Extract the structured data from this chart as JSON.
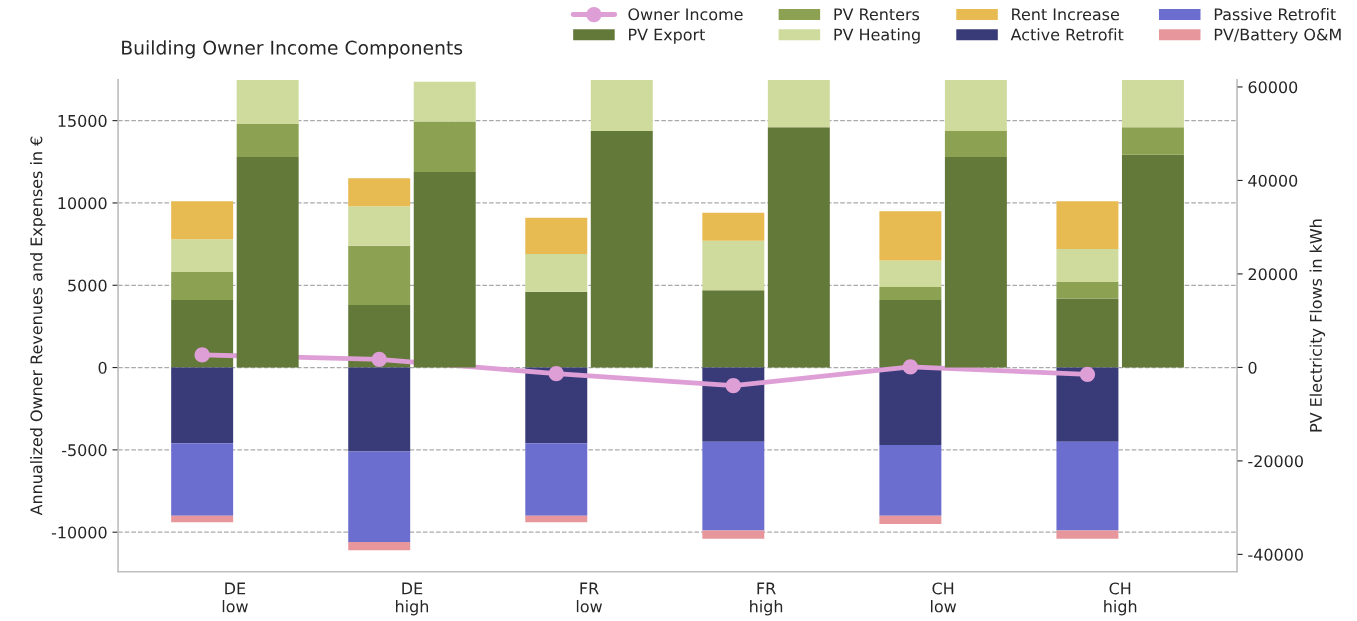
{
  "chart_data": {
    "type": "bar",
    "title": "Building Owner Income Components",
    "ylabel": "Annualized Owner Revenues and Expenses in €",
    "y2label": "PV Electricity Flows in kWh",
    "categories": [
      "DE\nlow",
      "DE\nhigh",
      "FR\nlow",
      "FR\nhigh",
      "CH\nlow",
      "CH\nhigh"
    ],
    "stacked": true,
    "grid": "y",
    "legend": "top right",
    "ylim": [
      -12400,
      17500
    ],
    "yticks": [
      -10000,
      -5000,
      0,
      5000,
      10000,
      15000
    ],
    "y2lim": [
      -43700,
      61600
    ],
    "y2ticks": [
      -40000,
      -20000,
      0,
      20000,
      40000,
      60000
    ],
    "series": [
      {
        "name": "Owner Income",
        "type": "line",
        "marker": "circle",
        "color": "#de9ed6",
        "values": [
          770,
          500,
          -370,
          -1100,
          40,
          -410
        ]
      },
      {
        "name": "PV Export",
        "color": "#637939",
        "values": [
          4100,
          3800,
          4600,
          4700,
          4100,
          4200
        ]
      },
      {
        "name": "PV Renters",
        "color": "#8ca252",
        "values": [
          1700,
          3600,
          0,
          0,
          800,
          1000
        ]
      },
      {
        "name": "PV Heating",
        "color": "#cedb9c",
        "values": [
          2000,
          2400,
          2300,
          3000,
          1600,
          2000
        ]
      },
      {
        "name": "Rent Increase",
        "color": "#e7ba52",
        "values": [
          2300,
          1700,
          2200,
          1700,
          3000,
          2900
        ]
      },
      {
        "name": "Active Retrofit",
        "color": "#393b79",
        "values": [
          -4600,
          -5100,
          -4600,
          -4500,
          -4700,
          -4500
        ]
      },
      {
        "name": "Passive Retrofit",
        "color": "#6b6ecf",
        "values": [
          -4400,
          -5500,
          -4400,
          -5400,
          -4300,
          -5400
        ]
      },
      {
        "name": "PV/Battery O&M",
        "color": "#e7969c",
        "values": [
          -400,
          -500,
          -400,
          -500,
          -500,
          -500
        ]
      },
      {
        "axis": "y2",
        "color": "#637939",
        "values": [
          45000,
          41800,
          50600,
          51400,
          45000,
          45500
        ]
      },
      {
        "axis": "y2",
        "color": "#8ca252",
        "values": [
          7100,
          10800,
          0,
          0,
          5600,
          5900
        ]
      },
      {
        "axis": "y2",
        "color": "#cedb9c",
        "values": [
          9400,
          8500,
          10900,
          10100,
          10900,
          10100
        ]
      }
    ]
  }
}
